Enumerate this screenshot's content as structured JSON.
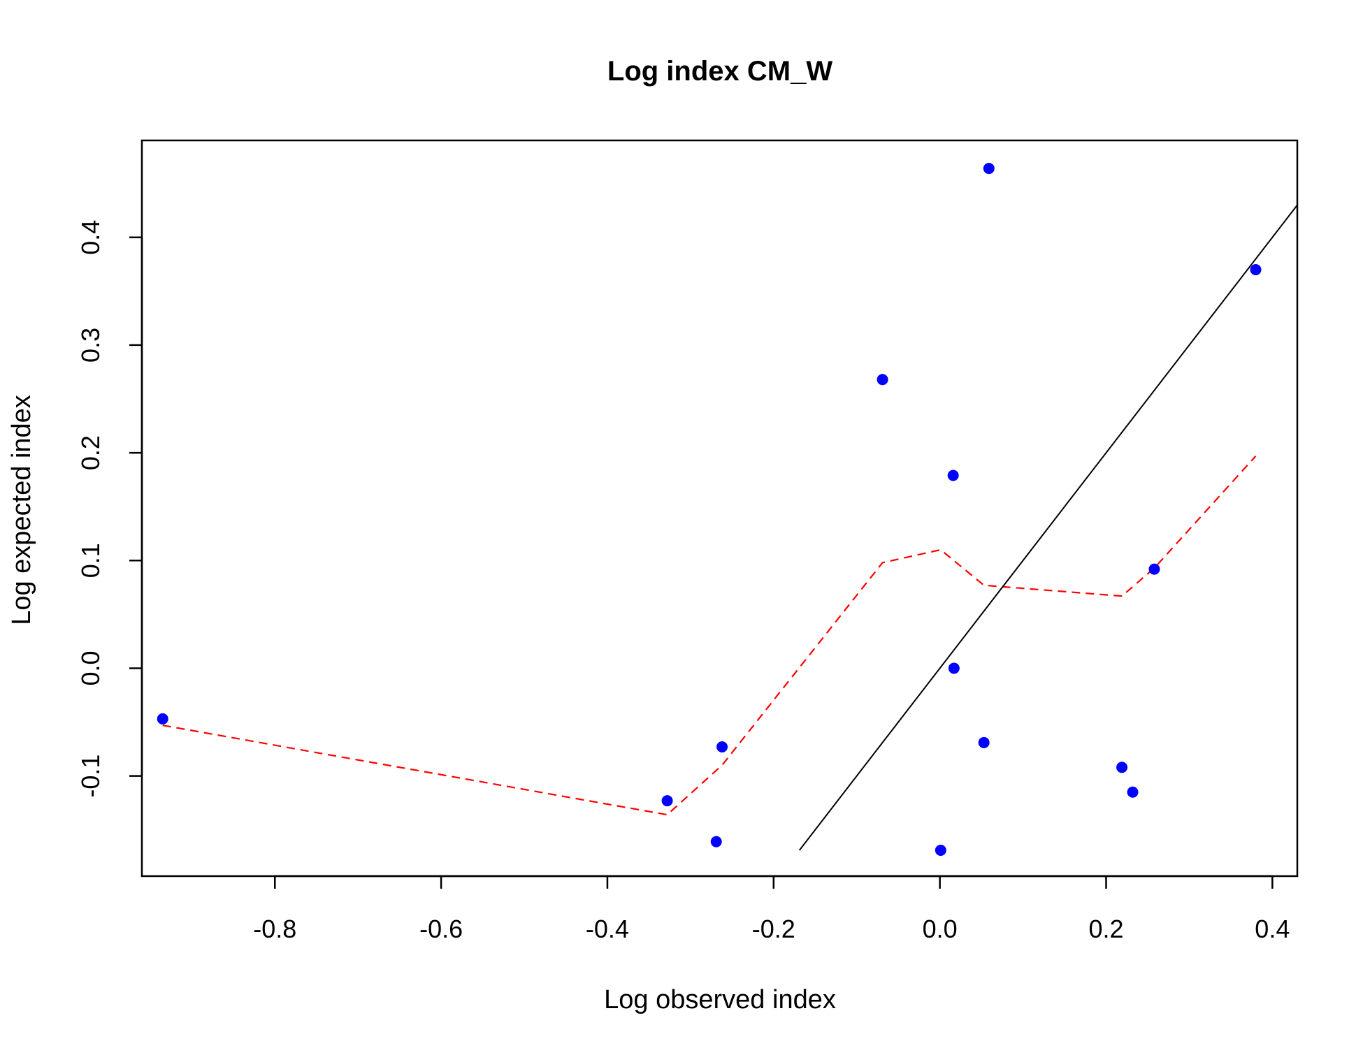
{
  "chart_data": {
    "type": "scatter",
    "title": "Log index CM_W",
    "xlabel": "Log observed index",
    "ylabel": "Log expected index",
    "xlim": [
      -0.96,
      0.43
    ],
    "ylim": [
      -0.193,
      0.49
    ],
    "x_ticks": [
      -0.8,
      -0.6,
      -0.4,
      -0.2,
      0.0,
      0.2,
      0.4
    ],
    "x_tick_labels": [
      "-0.8",
      "-0.6",
      "-0.4",
      "-0.2",
      "0.0",
      "0.2",
      "0.4"
    ],
    "y_ticks": [
      -0.1,
      0.0,
      0.1,
      0.2,
      0.3,
      0.4
    ],
    "y_tick_labels": [
      "-0.1",
      "0.0",
      "0.1",
      "0.2",
      "0.3",
      "0.4"
    ],
    "grid": false,
    "legend": "none",
    "series": [
      {
        "type": "scatter",
        "color": "#0000ff",
        "points": [
          {
            "x": -0.935,
            "y": -0.047
          },
          {
            "x": -0.328,
            "y": -0.123
          },
          {
            "x": -0.262,
            "y": -0.073
          },
          {
            "x": -0.269,
            "y": -0.161
          },
          {
            "x": -0.069,
            "y": 0.268
          },
          {
            "x": 0.001,
            "y": -0.169
          },
          {
            "x": 0.016,
            "y": 0.179
          },
          {
            "x": 0.017,
            "y": 0.0
          },
          {
            "x": 0.053,
            "y": -0.069
          },
          {
            "x": 0.059,
            "y": 0.464
          },
          {
            "x": 0.219,
            "y": -0.092
          },
          {
            "x": 0.232,
            "y": -0.115
          },
          {
            "x": 0.258,
            "y": 0.092
          },
          {
            "x": 0.38,
            "y": 0.37
          }
        ]
      },
      {
        "type": "line",
        "color": "#ff0000",
        "dash": "dashed",
        "points": [
          {
            "x": -0.935,
            "y": -0.053
          },
          {
            "x": -0.328,
            "y": -0.136
          },
          {
            "x": -0.262,
            "y": -0.09
          },
          {
            "x": -0.069,
            "y": 0.098
          },
          {
            "x": 0.001,
            "y": 0.11
          },
          {
            "x": 0.053,
            "y": 0.077
          },
          {
            "x": 0.219,
            "y": 0.067
          },
          {
            "x": 0.258,
            "y": 0.093
          },
          {
            "x": 0.38,
            "y": 0.197
          }
        ]
      },
      {
        "type": "line",
        "color": "#000000",
        "dash": "solid",
        "points": [
          {
            "x": -0.169,
            "y": -0.169
          },
          {
            "x": 0.43,
            "y": 0.43
          }
        ]
      }
    ]
  }
}
